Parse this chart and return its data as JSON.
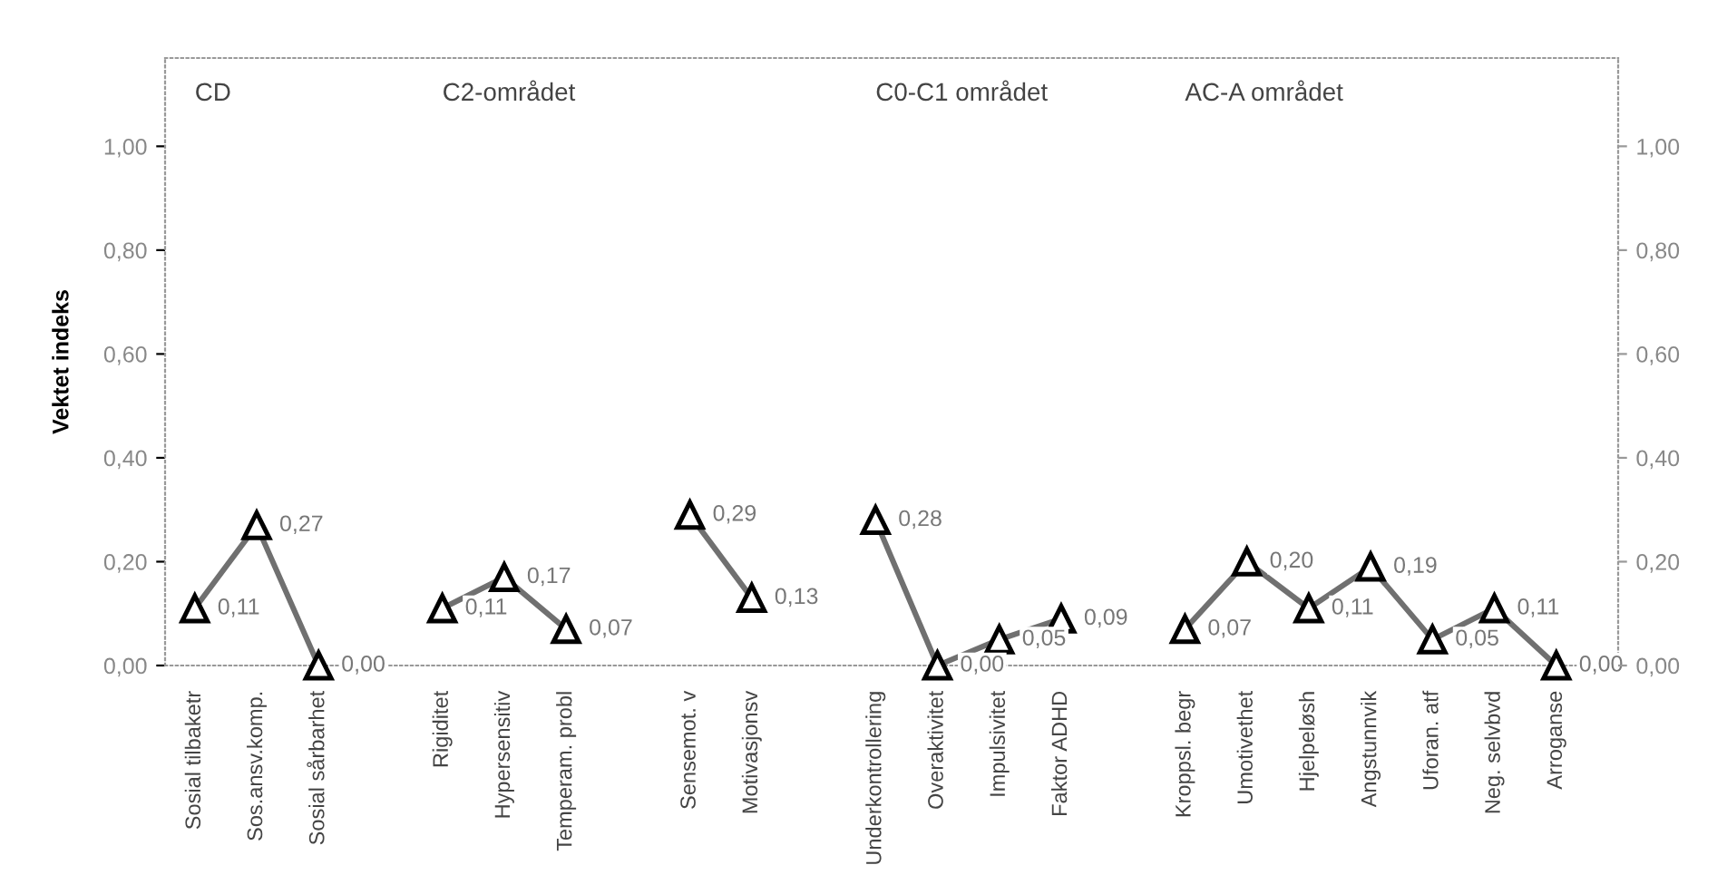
{
  "chart_data": {
    "type": "line",
    "ylabel": "Vektet indeks",
    "categories": [
      "Sosial tilbaketr",
      "Sos.ansv.komp.",
      "Sosial sårbarhet",
      null,
      "Rigiditet",
      "Hypersensitiv",
      "Temperam. probl",
      null,
      "Sensemot. v",
      "Motivasjonsv",
      null,
      "Underkontrollering",
      "Overaktivitet",
      "Impulsivitet",
      "Faktor ADHD",
      null,
      "Kroppsl. begr",
      "Umotivethet",
      "Hjelpeløsh",
      "Angstunnvik",
      "Uforan. atf",
      "Neg. selvbvd",
      "Arroganse"
    ],
    "series": [
      {
        "color": "#707070",
        "values": [
          0.11,
          0.27,
          0.0,
          null,
          0.11,
          0.17,
          0.07,
          null,
          0.29,
          0.13,
          null,
          0.28,
          0.0,
          0.05,
          0.09,
          null,
          0.07,
          0.2,
          0.11,
          0.19,
          0.05,
          0.11,
          0.0
        ],
        "value_labels": [
          "0,11",
          "0,27",
          "0,00",
          null,
          "0,11",
          "0,17",
          "0,07",
          null,
          "0,29",
          "0,13",
          null,
          "0,28",
          "0,00",
          "0,05",
          "0,09",
          null,
          "0,07",
          "0,20",
          "0,11",
          "0,19",
          "0,05",
          "0,11",
          "0,00"
        ]
      }
    ],
    "marker": "triangle",
    "line_style": "solid",
    "ylim": [
      0,
      1.17
    ],
    "yticks": [
      {
        "value": 0,
        "label": "0,00"
      },
      {
        "value": 0.2,
        "label": "0,20"
      },
      {
        "value": 0.4,
        "label": "0,40"
      },
      {
        "value": 0.6,
        "label": "0,60"
      },
      {
        "value": 0.8,
        "label": "0,80"
      },
      {
        "value": 1.0,
        "label": "1,00"
      }
    ],
    "y2lim": [
      0,
      1.17
    ],
    "y2ticks": [
      {
        "value": 0,
        "label": "0,00"
      },
      {
        "value": 0.2,
        "label": "0,20"
      },
      {
        "value": 0.4,
        "label": "0,40"
      },
      {
        "value": 0.6,
        "label": "0,60"
      },
      {
        "value": 0.8,
        "label": "0,80"
      },
      {
        "value": 1.0,
        "label": "1,00"
      }
    ],
    "grid": false,
    "legend": false,
    "annotations": [
      "CD",
      "C2-området",
      "C0-C1 området",
      "AC-A området"
    ]
  }
}
